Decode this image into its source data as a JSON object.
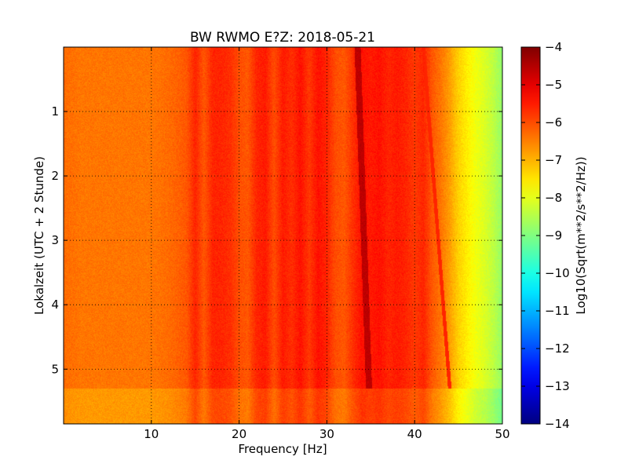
{
  "chart_data": {
    "type": "heatmap",
    "title": "BW RWMO E?Z: 2018-05-21",
    "xlabel": "Frequency [Hz]",
    "ylabel": "Lokalzeit (UTC + 2 Stunde)",
    "xlim": [
      0,
      50
    ],
    "ylim": [
      5.85,
      0
    ],
    "x_ticks": [
      10,
      20,
      30,
      40,
      50
    ],
    "y_ticks": [
      1,
      2,
      3,
      4,
      5
    ],
    "grid": true,
    "colormap": "jet",
    "colorbar": {
      "label": "Log10(Sqrt(m**2/s**2/Hz))",
      "range": [
        -14,
        -4
      ],
      "ticks": [
        -4,
        -5,
        -6,
        -7,
        -8,
        -9,
        -10,
        -11,
        -12,
        -13,
        -14
      ]
    },
    "spectral_profile": {
      "freq_hz": [
        0,
        2,
        5,
        8,
        10,
        12,
        14,
        15,
        16,
        17,
        18,
        19,
        20,
        21,
        22,
        23,
        24,
        25,
        26,
        27,
        28,
        29,
        30,
        31,
        32,
        33,
        34,
        35,
        36,
        37,
        38,
        39,
        40,
        41,
        42,
        43,
        44,
        45,
        46,
        47,
        48,
        49,
        50
      ],
      "log_amplitude": [
        -6.3,
        -6.4,
        -6.4,
        -6.4,
        -6.4,
        -6.3,
        -6.1,
        -5.6,
        -6.1,
        -5.6,
        -5.6,
        -5.7,
        -6.0,
        -6.1,
        -5.6,
        -5.5,
        -6.0,
        -5.5,
        -5.7,
        -5.4,
        -5.8,
        -5.4,
        -5.6,
        -6.0,
        -6.1,
        -5.7,
        -5.4,
        -5.5,
        -5.4,
        -5.6,
        -5.5,
        -5.6,
        -5.8,
        -5.6,
        -6.1,
        -6.4,
        -6.8,
        -7.3,
        -7.6,
        -7.9,
        -8.1,
        -8.4,
        -8.8
      ]
    },
    "features": [
      {
        "name": "drifting tonal line",
        "freq_start_hz": 33.5,
        "freq_end_hz": 34.8,
        "time_start": 0,
        "time_end": 5.3,
        "log_amplitude": -4.6
      },
      {
        "name": "faint drifting line",
        "freq_start_hz": 41.0,
        "freq_end_hz": 44.0,
        "time_start": 0,
        "time_end": 5.3,
        "log_amplitude": -5.6
      },
      {
        "name": "level drop",
        "time": 5.3,
        "note": "lower amplitude after"
      }
    ]
  }
}
